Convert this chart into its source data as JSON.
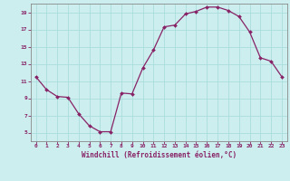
{
  "x": [
    0,
    1,
    2,
    3,
    4,
    5,
    6,
    7,
    8,
    9,
    10,
    11,
    12,
    13,
    14,
    15,
    16,
    17,
    18,
    19,
    20,
    21,
    22,
    23
  ],
  "y": [
    11.5,
    10.0,
    9.2,
    9.1,
    7.2,
    5.8,
    5.1,
    5.1,
    9.6,
    9.5,
    12.5,
    14.6,
    17.3,
    17.5,
    18.8,
    19.1,
    19.6,
    19.6,
    19.2,
    18.5,
    16.7,
    13.7,
    13.3,
    11.5
  ],
  "line_color": "#882266",
  "marker_color": "#882266",
  "bg_color": "#cceeee",
  "grid_color": "#aadddd",
  "spine_color": "#888888",
  "xlabel": "Windchill (Refroidissement éolien,°C)",
  "xlabel_color": "#882266",
  "tick_color": "#882266",
  "ylim": [
    4,
    20
  ],
  "xlim": [
    -0.5,
    23.5
  ],
  "yticks": [
    5,
    7,
    9,
    11,
    13,
    15,
    17,
    19
  ],
  "xticks": [
    0,
    1,
    2,
    3,
    4,
    5,
    6,
    7,
    8,
    9,
    10,
    11,
    12,
    13,
    14,
    15,
    16,
    17,
    18,
    19,
    20,
    21,
    22,
    23
  ],
  "figsize": [
    3.2,
    2.0
  ],
  "dpi": 100
}
